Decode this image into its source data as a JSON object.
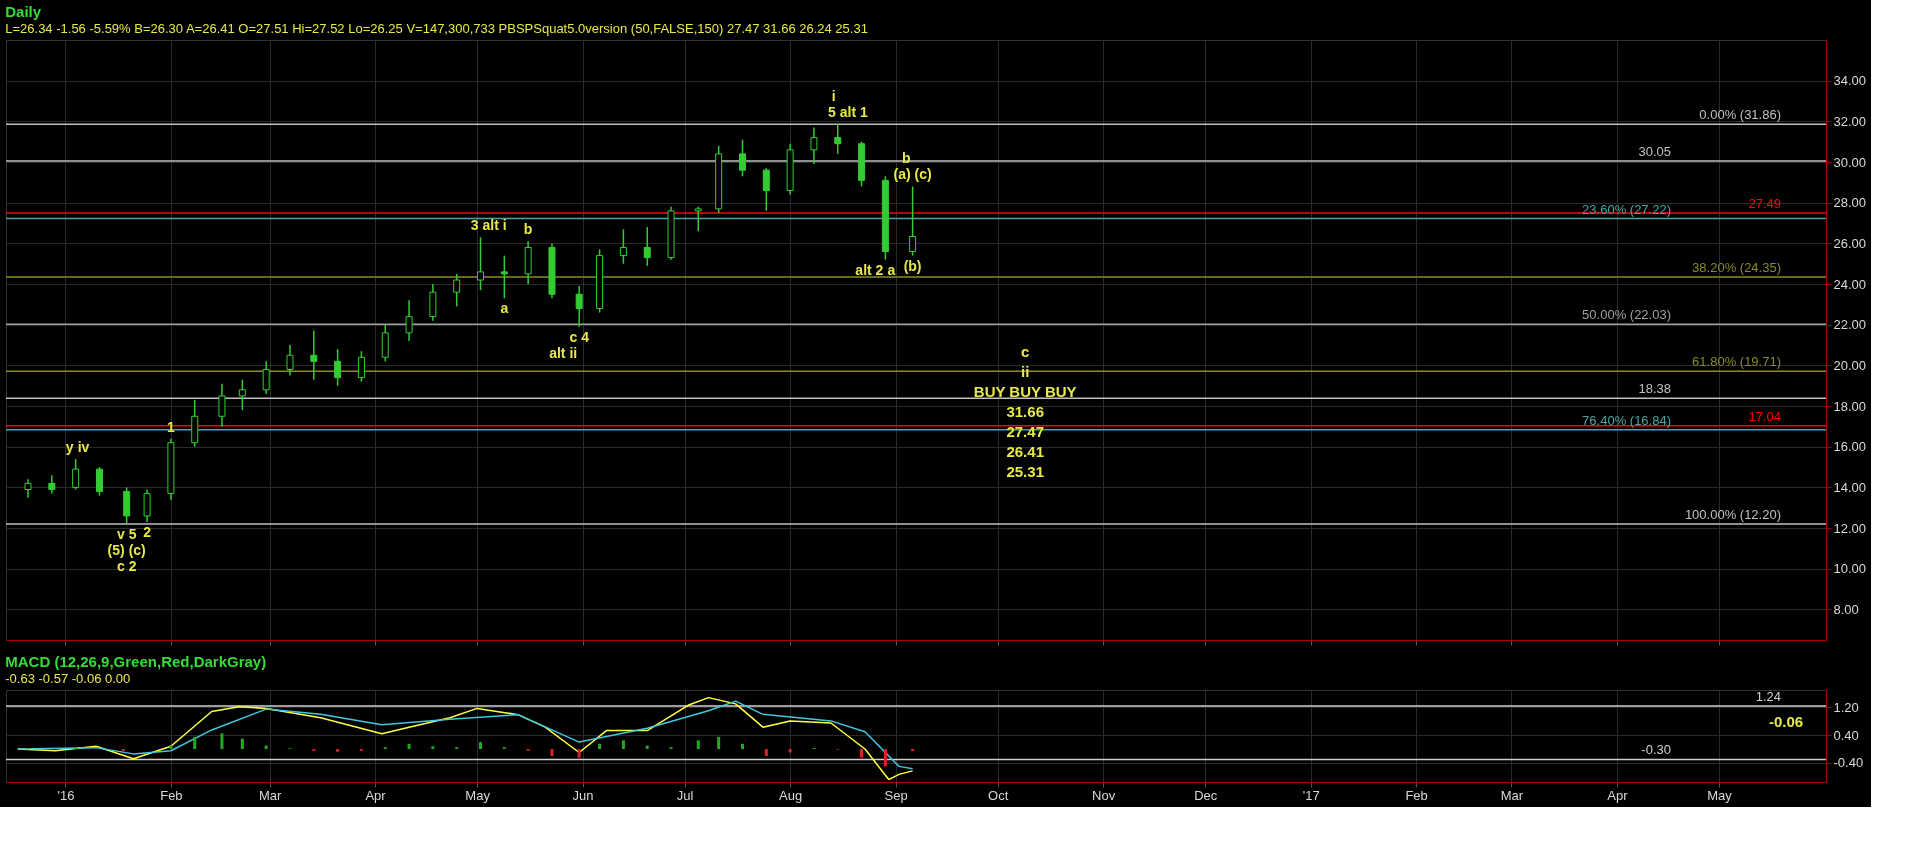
{
  "chart_data": [
    {
      "type": "candlestick",
      "title": "Daily",
      "subtitle": "L=26.34  -1.56  -5.59%   B=26.30   A=26.41   O=27.51   Hi=27.52   Lo=26.25   V=147,300,733   PBSPSquat5.0version (50,FALSE,150)   27.47   31.66   26.24   25.31",
      "x": [
        "2015-12-21",
        "2015-12-28",
        "2016-01-04",
        "2016-01-11",
        "2016-01-19",
        "2016-01-25",
        "2016-02-01",
        "2016-02-08",
        "2016-02-16",
        "2016-02-22",
        "2016-02-29",
        "2016-03-07",
        "2016-03-14",
        "2016-03-21",
        "2016-03-28",
        "2016-04-04",
        "2016-04-11",
        "2016-04-18",
        "2016-04-25",
        "2016-05-02",
        "2016-05-09",
        "2016-05-16",
        "2016-05-23",
        "2016-05-31",
        "2016-06-06",
        "2016-06-13",
        "2016-06-20",
        "2016-06-27",
        "2016-07-05",
        "2016-07-11",
        "2016-07-18",
        "2016-07-25",
        "2016-08-01",
        "2016-08-08",
        "2016-08-15",
        "2016-08-22",
        "2016-08-29",
        "2016-09-06"
      ],
      "ohlc": [
        [
          13.9,
          14.4,
          13.5,
          14.2
        ],
        [
          14.2,
          14.6,
          13.7,
          13.9
        ],
        [
          14.0,
          15.4,
          13.9,
          14.9
        ],
        [
          14.9,
          15.0,
          13.6,
          13.8
        ],
        [
          13.8,
          14.0,
          12.2,
          12.6
        ],
        [
          12.6,
          13.9,
          12.3,
          13.7
        ],
        [
          13.7,
          16.4,
          13.4,
          16.2
        ],
        [
          16.2,
          18.3,
          16.0,
          17.5
        ],
        [
          17.5,
          19.1,
          17.0,
          18.5
        ],
        [
          18.5,
          19.3,
          17.8,
          18.8
        ],
        [
          18.8,
          20.2,
          18.6,
          19.8
        ],
        [
          19.8,
          21.0,
          19.5,
          20.5
        ],
        [
          20.5,
          21.7,
          19.3,
          20.2
        ],
        [
          20.2,
          20.8,
          19.0,
          19.4
        ],
        [
          19.4,
          20.7,
          19.2,
          20.4
        ],
        [
          20.4,
          22.0,
          20.2,
          21.6
        ],
        [
          21.6,
          23.2,
          21.2,
          22.4
        ],
        [
          22.4,
          24.0,
          22.2,
          23.6
        ],
        [
          23.6,
          24.5,
          22.9,
          24.2
        ],
        [
          24.2,
          26.3,
          23.7,
          24.6
        ],
        [
          24.6,
          25.4,
          23.3,
          24.5
        ],
        [
          24.5,
          26.1,
          24.0,
          25.8
        ],
        [
          25.8,
          26.0,
          23.3,
          23.5
        ],
        [
          23.5,
          23.9,
          21.9,
          22.8
        ],
        [
          22.8,
          25.7,
          22.6,
          25.4
        ],
        [
          25.4,
          26.7,
          25.0,
          25.8
        ],
        [
          25.8,
          26.8,
          24.9,
          25.3
        ],
        [
          25.3,
          27.8,
          25.2,
          27.6
        ],
        [
          27.6,
          27.8,
          26.6,
          27.7
        ],
        [
          27.7,
          30.8,
          27.5,
          30.4
        ],
        [
          30.4,
          31.1,
          29.3,
          29.6
        ],
        [
          29.6,
          29.7,
          27.6,
          28.6
        ],
        [
          28.6,
          30.9,
          28.4,
          30.6
        ],
        [
          30.6,
          31.7,
          29.9,
          31.2
        ],
        [
          31.2,
          31.86,
          30.4,
          30.9
        ],
        [
          30.9,
          31.0,
          28.8,
          29.1
        ],
        [
          29.1,
          29.3,
          25.2,
          25.6
        ],
        [
          25.6,
          28.8,
          25.4,
          26.34
        ]
      ],
      "color": "#33cc33",
      "xlim": [
        "2015-12-16",
        "2017-05-31"
      ],
      "xticks": [
        {
          "value": "2016-01-01",
          "label": null
        },
        {
          "value": "2016-02-01",
          "label": null
        },
        {
          "value": "2016-03-01",
          "label": null
        },
        {
          "value": "2016-04-01",
          "label": null
        },
        {
          "value": "2016-05-01",
          "label": null
        },
        {
          "value": "2016-06-01",
          "label": null
        },
        {
          "value": "2016-07-01",
          "label": null
        },
        {
          "value": "2016-08-01",
          "label": null
        },
        {
          "value": "2016-09-01",
          "label": null
        },
        {
          "value": "2016-10-01",
          "label": null
        },
        {
          "value": "2016-11-01",
          "label": null
        },
        {
          "value": "2016-12-01",
          "label": null
        },
        {
          "value": "2017-01-01",
          "label": null
        },
        {
          "value": "2017-02-01",
          "label": null
        },
        {
          "value": "2017-03-01",
          "label": null
        },
        {
          "value": "2017-04-01",
          "label": null
        },
        {
          "value": "2017-05-01",
          "label": null
        }
      ],
      "ylim": [
        6.5,
        36
      ],
      "yticks": [
        {
          "value": 8,
          "label": "8.00"
        },
        {
          "value": 10,
          "label": "10.00"
        },
        {
          "value": 12,
          "label": "12.00"
        },
        {
          "value": 14,
          "label": "14.00"
        },
        {
          "value": 16,
          "label": "16.00"
        },
        {
          "value": 18,
          "label": "18.00"
        },
        {
          "value": 20,
          "label": "20.00"
        },
        {
          "value": 22,
          "label": "22.00"
        },
        {
          "value": 24,
          "label": "24.00"
        },
        {
          "value": 26,
          "label": "26.00"
        },
        {
          "value": 28,
          "label": "28.00"
        },
        {
          "value": 30,
          "label": "30.00"
        },
        {
          "value": 32,
          "label": "32.00"
        },
        {
          "value": 34,
          "label": "34.00"
        }
      ],
      "tick_labels": "y",
      "grid": true,
      "ref_lines": [
        {
          "axis": "y",
          "value": 31.86,
          "label": "0.00% (31.86)",
          "color": "#c0c0c0"
        },
        {
          "axis": "y",
          "value": 30.05,
          "label": "30.05",
          "color": "#c0c0c0"
        },
        {
          "axis": "y",
          "value": 27.49,
          "label": "27.49",
          "color": "#ff0000"
        },
        {
          "axis": "y",
          "value": 27.22,
          "label": "23.60% (27.22)",
          "color": "#4aa6a6"
        },
        {
          "axis": "y",
          "value": 24.35,
          "label": "38.20% (24.35)",
          "color": "#8a8a2a"
        },
        {
          "axis": "y",
          "value": 22.03,
          "label": "50.00% (22.03)",
          "color": "#a0a0a0"
        },
        {
          "axis": "y",
          "value": 19.71,
          "label": "61.80% (19.71)",
          "color": "#8a8a2a"
        },
        {
          "axis": "y",
          "value": 18.38,
          "label": "18.38",
          "color": "#c0c0c0"
        },
        {
          "axis": "y",
          "value": 17.04,
          "label": "17.04",
          "color": "#ff0000"
        },
        {
          "axis": "y",
          "value": 16.84,
          "label": "76.40% (16.84)",
          "color": "#4aa6a6"
        },
        {
          "axis": "y",
          "value": 12.2,
          "label": "100.00% (12.20)",
          "color": "#c0c0c0"
        }
      ],
      "annotations": [
        {
          "text": "y",
          "x": "2016-01-04",
          "y": 15.4
        },
        {
          "text": "iv",
          "x": "2016-01-04",
          "y": 15.4
        },
        {
          "text": "v",
          "x": "2016-01-19",
          "y": 12.2
        },
        {
          "text": "5",
          "x": "2016-01-19",
          "y": 12.2
        },
        {
          "text": "(5)",
          "x": "2016-01-19",
          "y": 12.2
        },
        {
          "text": "(c)",
          "x": "2016-01-19",
          "y": 12.2
        },
        {
          "text": "c",
          "x": "2016-01-19",
          "y": 12.2
        },
        {
          "text": "2",
          "x": "2016-01-19",
          "y": 12.2
        },
        {
          "text": "1",
          "x": "2016-02-01",
          "y": 16.4
        },
        {
          "text": "2",
          "x": "2016-01-25",
          "y": 12.3
        },
        {
          "text": "3",
          "x": "2016-05-02",
          "y": 26.3
        },
        {
          "text": "alt i",
          "x": "2016-05-02",
          "y": 26.3
        },
        {
          "text": "a",
          "x": "2016-05-09",
          "y": 23.3
        },
        {
          "text": "b",
          "x": "2016-05-16",
          "y": 26.1
        },
        {
          "text": "c",
          "x": "2016-05-31",
          "y": 21.9
        },
        {
          "text": "4",
          "x": "2016-05-31",
          "y": 21.9
        },
        {
          "text": "alt ii",
          "x": "2016-05-31",
          "y": 21.9
        },
        {
          "text": "5",
          "x": "2016-08-15",
          "y": 31.86
        },
        {
          "text": "alt 1",
          "x": "2016-08-15",
          "y": 31.86
        },
        {
          "text": "i",
          "x": "2016-08-15",
          "y": 31.86
        },
        {
          "text": "(a)",
          "x": "2016-09-06",
          "y": 28.8
        },
        {
          "text": "(c)",
          "x": "2016-09-06",
          "y": 28.8
        },
        {
          "text": "b",
          "x": "2016-09-06",
          "y": 28.8
        },
        {
          "text": "(b)",
          "x": "2016-09-06",
          "y": 25.4
        },
        {
          "text": "alt 2",
          "x": "2016-08-29",
          "y": 25.2
        },
        {
          "text": "a",
          "x": "2016-08-29",
          "y": 25.2
        },
        "c",
        "ii",
        "BUY   BUY   BUY",
        "31.66",
        "27.47",
        "26.41",
        "25.31"
      ]
    },
    {
      "type": "line",
      "title": "MACD (12,26,9,Green,Red,DarkGray)",
      "subtitle": "-0.63   -0.57   -0.06   0.00",
      "series": [
        {
          "type": "line",
          "color": "#ffff44",
          "x": [
            "2015-12-18",
            "2015-12-29",
            "2016-01-10",
            "2016-01-21",
            "2016-02-01",
            "2016-02-13",
            "2016-02-21",
            "2016-02-29",
            "2016-03-16",
            "2016-04-03",
            "2016-04-11",
            "2016-04-23",
            "2016-05-01",
            "2016-05-13",
            "2016-05-21",
            "2016-05-31",
            "2016-06-08",
            "2016-06-20",
            "2016-07-02",
            "2016-07-08",
            "2016-07-16",
            "2016-07-24",
            "2016-08-01",
            "2016-08-13",
            "2016-08-23",
            "2016-08-30",
            "2016-09-02",
            "2016-09-06"
          ],
          "values": [
            0.0,
            -0.05,
            0.08,
            -0.28,
            0.08,
            1.08,
            1.22,
            1.17,
            0.9,
            0.44,
            0.63,
            0.9,
            1.17,
            0.99,
            0.63,
            -0.1,
            0.53,
            0.53,
            1.26,
            1.48,
            1.3,
            0.63,
            0.81,
            0.75,
            0.0,
            -0.88,
            -0.73,
            -0.63
          ]
        },
        {
          "type": "line",
          "color": "#40c8e0",
          "x": [
            "2015-12-18",
            "2016-01-10",
            "2016-01-21",
            "2016-02-01",
            "2016-02-13",
            "2016-02-29",
            "2016-03-16",
            "2016-04-03",
            "2016-04-23",
            "2016-05-13",
            "2016-05-31",
            "2016-06-20",
            "2016-07-08",
            "2016-07-16",
            "2016-07-24",
            "2016-08-13",
            "2016-08-23",
            "2016-09-02",
            "2016-09-06"
          ],
          "values": [
            0.0,
            0.04,
            -0.14,
            -0.05,
            0.55,
            1.15,
            1.0,
            0.7,
            0.86,
            0.99,
            0.2,
            0.6,
            1.1,
            1.38,
            1.0,
            0.81,
            0.5,
            -0.5,
            -0.57
          ]
        },
        {
          "type": "bar",
          "x": [
            "2015-12-21",
            "2016-01-04",
            "2016-01-18",
            "2016-02-01",
            "2016-02-08",
            "2016-02-16",
            "2016-02-22",
            "2016-02-29",
            "2016-03-07",
            "2016-03-14",
            "2016-03-21",
            "2016-03-28",
            "2016-04-04",
            "2016-04-11",
            "2016-04-18",
            "2016-04-25",
            "2016-05-02",
            "2016-05-09",
            "2016-05-16",
            "2016-05-23",
            "2016-05-31",
            "2016-06-06",
            "2016-06-13",
            "2016-06-20",
            "2016-06-27",
            "2016-07-05",
            "2016-07-11",
            "2016-07-18",
            "2016-07-25",
            "2016-08-01",
            "2016-08-08",
            "2016-08-15",
            "2016-08-22",
            "2016-08-29",
            "2016-09-06"
          ],
          "values": [
            0.03,
            0.05,
            -0.05,
            0.1,
            0.35,
            0.45,
            0.3,
            0.1,
            0.02,
            -0.05,
            -0.08,
            -0.05,
            0.05,
            0.15,
            0.08,
            0.05,
            0.2,
            0.05,
            -0.05,
            -0.2,
            -0.25,
            0.15,
            0.25,
            0.1,
            0.05,
            0.25,
            0.35,
            0.15,
            -0.2,
            -0.1,
            0.03,
            -0.02,
            -0.25,
            -0.5,
            -0.06
          ],
          "colors": [
            "#22aa22",
            "#22aa22",
            "#dd2222",
            "#22aa22",
            "#22aa22",
            "#22aa22",
            "#22aa22",
            "#22aa22",
            "#22aa22",
            "#dd2222",
            "#dd2222",
            "#dd2222",
            "#22aa22",
            "#22aa22",
            "#22aa22",
            "#22aa22",
            "#22aa22",
            "#22aa22",
            "#dd2222",
            "#dd2222",
            "#dd2222",
            "#22aa22",
            "#22aa22",
            "#22aa22",
            "#22aa22",
            "#22aa22",
            "#22aa22",
            "#22aa22",
            "#dd2222",
            "#dd2222",
            "#22aa22",
            "#dd2222",
            "#dd2222",
            "#dd2222",
            "#dd2222"
          ]
        }
      ],
      "xlim": [
        "2015-12-16",
        "2017-05-31"
      ],
      "xticks": [
        {
          "value": "2016-01-01",
          "label": "'16"
        },
        {
          "value": "2016-02-01",
          "label": "Feb"
        },
        {
          "value": "2016-03-01",
          "label": "Mar"
        },
        {
          "value": "2016-04-01",
          "label": "Apr"
        },
        {
          "value": "2016-05-01",
          "label": "May"
        },
        {
          "value": "2016-06-01",
          "label": "Jun"
        },
        {
          "value": "2016-07-01",
          "label": "Jul"
        },
        {
          "value": "2016-08-01",
          "label": "Aug"
        },
        {
          "value": "2016-09-01",
          "label": "Sep"
        },
        {
          "value": "2016-10-01",
          "label": "Oct"
        },
        {
          "value": "2016-11-01",
          "label": "Nov"
        },
        {
          "value": "2016-12-01",
          "label": "Dec"
        },
        {
          "value": "2017-01-01",
          "label": "'17"
        },
        {
          "value": "2017-02-01",
          "label": "Feb"
        },
        {
          "value": "2017-03-01",
          "label": "Mar"
        },
        {
          "value": "2017-04-01",
          "label": "Apr"
        },
        {
          "value": "2017-05-01",
          "label": "May"
        }
      ],
      "ylim": [
        -0.95,
        1.7
      ],
      "yticks": [
        {
          "value": 1.2,
          "label": "1.20"
        },
        {
          "value": 0.4,
          "label": "0.40"
        },
        {
          "value": -0.4,
          "label": "-0.40"
        }
      ],
      "grid": true,
      "ref_lines": [
        {
          "axis": "y",
          "value": 1.24,
          "label": "1.24",
          "color": "#d0d0d0"
        },
        {
          "axis": "y",
          "value": -0.3,
          "label": "-0.30",
          "color": "#d0d0d0"
        }
      ],
      "annotations": [
        "-0.06"
      ]
    }
  ]
}
